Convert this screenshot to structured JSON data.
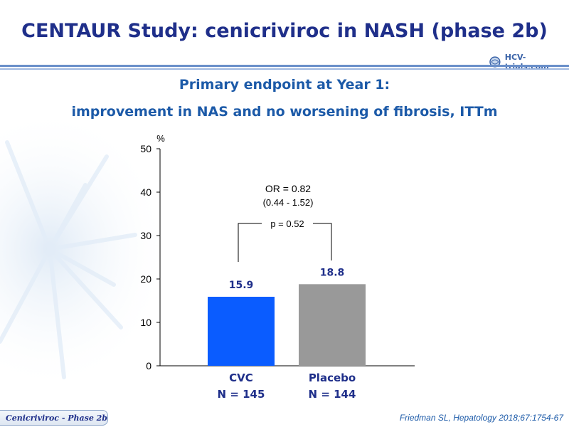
{
  "slide": {
    "title": "CENTAUR Study: cenicriviroc in NASH (phase 2b)",
    "subtitle_line1": "Primary endpoint at Year 1:",
    "subtitle_line2": "improvement in NAS and no worsening of fibrosis, ITTm",
    "logo_text": "HCV-trials.com",
    "footer_tag": "Cenicriviroc - Phase 2b",
    "citation": "Friedman SL, Hepatology 2018;67:1754-67",
    "colors": {
      "title": "#1f2f8a",
      "subtitle": "#1c5aa8",
      "cvc_bar": "#0a5cff",
      "placebo_bar": "#999999"
    }
  },
  "chart_data": {
    "type": "bar",
    "ylabel": "%",
    "ylim": [
      0,
      50
    ],
    "yticks": [
      0,
      10,
      20,
      30,
      40,
      50
    ],
    "categories": [
      "CVC",
      "Placebo"
    ],
    "category_n": [
      "N = 145",
      "N = 144"
    ],
    "values": [
      15.9,
      18.8
    ],
    "value_labels": [
      "15.9",
      "18.8"
    ],
    "bar_colors": [
      "#0a5cff",
      "#999999"
    ],
    "annotations": {
      "odds_ratio": "OR = 0.82",
      "ci": "(0.44 - 1.52)",
      "p_value": "p = 0.52"
    },
    "grid": false
  }
}
